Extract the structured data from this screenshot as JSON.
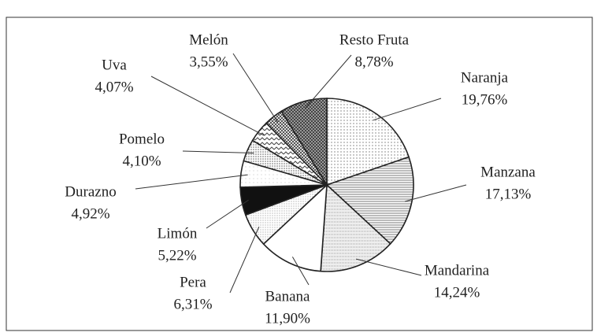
{
  "chart_data": {
    "type": "pie",
    "categories": [
      "Naranja",
      "Manzana",
      "Mandarina",
      "Banana",
      "Pera",
      "Limón",
      "Durazno",
      "Pomelo",
      "Uva",
      "Melón",
      "Resto Fruta"
    ],
    "values": [
      19.76,
      17.13,
      14.24,
      11.9,
      6.31,
      5.22,
      4.92,
      4.1,
      4.07,
      3.55,
      8.78
    ],
    "value_labels": [
      "19,76%",
      "17,13%",
      "14,24%",
      "11,90%",
      "6,31%",
      "5,22%",
      "4,92%",
      "4,10%",
      "4,07%",
      "3,55%",
      "8,78%"
    ]
  }
}
